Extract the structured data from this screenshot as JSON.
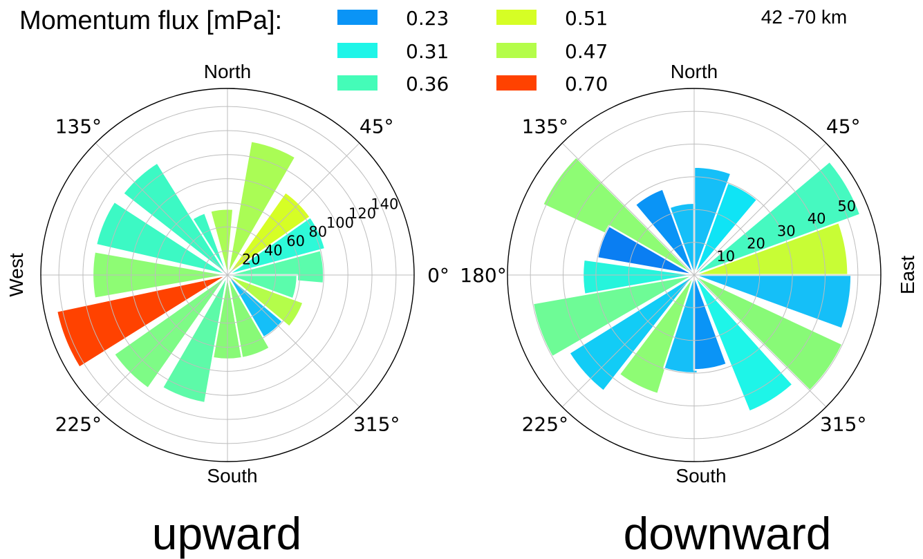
{
  "header": {
    "legend_title": "Momentum flux [mPa]:",
    "altitude_range": "42 -70 km"
  },
  "legend": [
    {
      "label": "0.23",
      "color": "#0a94f6"
    },
    {
      "label": "0.31",
      "color": "#1ef5e8"
    },
    {
      "label": "0.36",
      "color": "#44fcb8"
    },
    {
      "label": "0.51",
      "color": "#d6fe25"
    },
    {
      "label": "0.47",
      "color": "#b4fd4a"
    },
    {
      "label": "0.70",
      "color": "#ff4200"
    }
  ],
  "chart_data": [
    {
      "type": "polar-bar",
      "caption": "upward",
      "direction_labels": {
        "north": "North",
        "south": "South",
        "west": "West"
      },
      "angle_ticks": [
        {
          "angle": 0,
          "label": "0°"
        },
        {
          "angle": 45,
          "label": "45°"
        },
        {
          "angle": 135,
          "label": "135°"
        },
        {
          "angle": 225,
          "label": "225°"
        },
        {
          "angle": 315,
          "label": "315°"
        }
      ],
      "rmax": 155,
      "rgrid": [
        20,
        40,
        60,
        80,
        100,
        120,
        140
      ],
      "rtick_labels": [
        "20",
        "40",
        "60",
        "80",
        "100",
        "120",
        "140"
      ],
      "bin_width_deg": 20,
      "bins": [
        {
          "angle": 5,
          "value": 80,
          "color": "#5bfcac"
        },
        {
          "angle": 25,
          "value": 84,
          "color": "#2ef9d8"
        },
        {
          "angle": 45,
          "value": 84,
          "color": "#d6fe25"
        },
        {
          "angle": 70,
          "value": 113,
          "color": "#aafc55"
        },
        {
          "angle": 95,
          "value": 55,
          "color": "#aafc55"
        },
        {
          "angle": 120,
          "value": 55,
          "color": "#3cf9c4"
        },
        {
          "angle": 132,
          "value": 110,
          "color": "#3cf9c4"
        },
        {
          "angle": 157,
          "value": 112,
          "color": "#3cf9c4"
        },
        {
          "angle": 180,
          "value": 112,
          "color": "#8efc74"
        },
        {
          "angle": 202,
          "value": 145,
          "color": "#ff4200"
        },
        {
          "angle": 225,
          "value": 115,
          "color": "#7efb86"
        },
        {
          "angle": 250,
          "value": 108,
          "color": "#5dfaa8"
        },
        {
          "angle": 270,
          "value": 70,
          "color": "#88fa77"
        },
        {
          "angle": 290,
          "value": 70,
          "color": "#88fa77"
        },
        {
          "angle": 310,
          "value": 60,
          "color": "#15bff8"
        },
        {
          "angle": 330,
          "value": 67,
          "color": "#b4fd4a"
        },
        {
          "angle": 350,
          "value": 58,
          "color": "#5bfcac"
        }
      ]
    },
    {
      "type": "polar-bar",
      "caption": "downward",
      "direction_labels": {
        "north": "North",
        "south": "South",
        "east": "East"
      },
      "angle_ticks": [
        {
          "angle": 45,
          "label": "45°"
        },
        {
          "angle": 135,
          "label": "135°"
        },
        {
          "angle": 180,
          "label": "180°"
        },
        {
          "angle": 225,
          "label": "225°"
        },
        {
          "angle": 315,
          "label": "315°"
        }
      ],
      "rmax": 57,
      "rgrid": [
        10,
        20,
        30,
        40,
        50
      ],
      "rtick_labels": [
        "10",
        "20",
        "30",
        "40",
        "50"
      ],
      "bin_width_deg": 20,
      "bins": [
        {
          "angle": 10,
          "value": 47,
          "color": "#c8fd35"
        },
        {
          "angle": 30,
          "value": 54,
          "color": "#46f9c0"
        },
        {
          "angle": 60,
          "value": 30,
          "color": "#0fe4f5"
        },
        {
          "angle": 80,
          "value": 33,
          "color": "#15bff8"
        },
        {
          "angle": 100,
          "value": 22,
          "color": "#15bff8"
        },
        {
          "angle": 120,
          "value": 28,
          "color": "#0a94f6"
        },
        {
          "angle": 145,
          "value": 51,
          "color": "#8efc74"
        },
        {
          "angle": 160,
          "value": 30,
          "color": "#0a7ef2"
        },
        {
          "angle": 182,
          "value": 34,
          "color": "#26f4dc"
        },
        {
          "angle": 200,
          "value": 50,
          "color": "#6efb96"
        },
        {
          "angle": 222,
          "value": 45,
          "color": "#12ccf6"
        },
        {
          "angle": 243,
          "value": 38,
          "color": "#8efc74"
        },
        {
          "angle": 262,
          "value": 30,
          "color": "#15bff8"
        },
        {
          "angle": 280,
          "value": 29,
          "color": "#0a94f6"
        },
        {
          "angle": 302,
          "value": 45,
          "color": "#1ef5e8"
        },
        {
          "angle": 325,
          "value": 50,
          "color": "#88fa77"
        },
        {
          "angle": 350,
          "value": 48,
          "color": "#15bff8"
        }
      ]
    }
  ]
}
